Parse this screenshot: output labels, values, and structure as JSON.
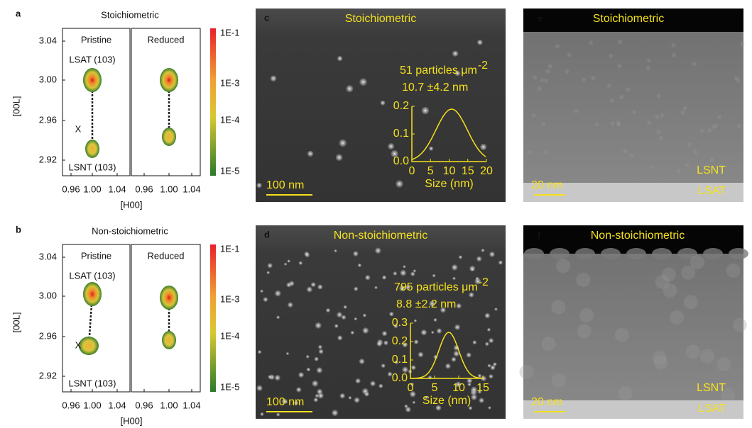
{
  "rsm_panels": [
    {
      "label": "a",
      "title": "Stoichiometric",
      "subplots": [
        "Pristine",
        "Reduced"
      ],
      "annotations": [
        "LSAT (103)",
        "X",
        "LSNT (103)"
      ],
      "y_axis": {
        "label": "[00L]",
        "ticks": [
          "3.04",
          "3.00",
          "2.96",
          "2.92"
        ]
      },
      "x_axis": {
        "label": "[H00]",
        "ticks": [
          "0.96",
          "1.00",
          "1.04"
        ]
      },
      "colorbar": [
        "1E-1",
        "1E-3",
        "1E-4",
        "1E-5"
      ]
    },
    {
      "label": "b",
      "title": "Non-stoichiometric",
      "subplots": [
        "Pristine",
        "Reduced"
      ],
      "annotations": [
        "LSAT (103)",
        "X",
        "LSNT (103)"
      ],
      "y_axis": {
        "label": "[00L]",
        "ticks": [
          "3.04",
          "3.00",
          "2.96",
          "2.92"
        ]
      },
      "x_axis": {
        "label": "[H00]",
        "ticks": [
          "0.96",
          "1.00",
          "1.04"
        ]
      },
      "colorbar": [
        "1E-1",
        "1E-3",
        "1E-4",
        "1E-5"
      ]
    }
  ],
  "sem_panels": [
    {
      "label": "c",
      "title": "Stoichiometric",
      "density": "51 particles μm",
      "density_exp": "-2",
      "size": "10.7 ±4.2 nm",
      "scale_bar": "100 nm",
      "inset": {
        "y_ticks": [
          "0.2",
          "0.1",
          "0.0"
        ],
        "x_ticks": [
          "0",
          "5",
          "10",
          "15",
          "20"
        ],
        "x_label": "Size (nm)"
      }
    },
    {
      "label": "d",
      "title": "Non-stoichiometric",
      "density": "795 particles μm",
      "density_exp": "-2",
      "size": "8.8 ±2.2 nm",
      "scale_bar": "100 nm",
      "inset": {
        "y_ticks": [
          "0.3",
          "0.2",
          "0.1",
          "0.0"
        ],
        "x_ticks": [
          "0",
          "5",
          "10",
          "15"
        ],
        "x_label": "Size (nm)"
      }
    }
  ],
  "stem_panels": [
    {
      "label": "e",
      "title": "Stoichiometric",
      "scale_bar": "20 nm",
      "layers": [
        "LSNT",
        "LSAT"
      ]
    },
    {
      "label": "f",
      "title": "Non-stoichiometric",
      "scale_bar": "20 nm",
      "layers": [
        "LSNT",
        "LSAT"
      ]
    }
  ]
}
